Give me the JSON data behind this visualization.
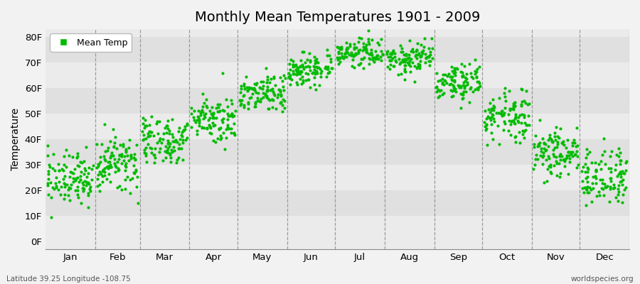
{
  "title": "Monthly Mean Temperatures 1901 - 2009",
  "ylabel": "Temperature",
  "month_labels": [
    "Jan",
    "Feb",
    "Mar",
    "Apr",
    "May",
    "Jun",
    "Jul",
    "Aug",
    "Sep",
    "Oct",
    "Nov",
    "Dec"
  ],
  "ytick_labels": [
    "0F",
    "10F",
    "20F",
    "30F",
    "40F",
    "50F",
    "60F",
    "70F",
    "80F"
  ],
  "ytick_values": [
    0,
    10,
    20,
    30,
    40,
    50,
    60,
    70,
    80
  ],
  "ylim": [
    -3,
    83
  ],
  "xlim": [
    0,
    365
  ],
  "dot_color": "#00bb00",
  "bg_color": "#f2f2f2",
  "plot_bg_light": "#ebebeb",
  "plot_bg_dark": "#e0e0e0",
  "legend_label": "Mean Temp",
  "footer_left": "Latitude 39.25 Longitude -108.75",
  "footer_right": "worldspecies.org",
  "monthly_means": [
    24.5,
    30.0,
    39.5,
    48.5,
    58.0,
    67.5,
    74.0,
    71.5,
    62.0,
    49.5,
    35.0,
    25.5
  ],
  "monthly_stds": [
    5.0,
    5.5,
    5.0,
    4.5,
    4.0,
    3.5,
    2.5,
    3.5,
    4.0,
    5.0,
    5.0,
    5.5
  ],
  "n_years": 109,
  "month_days": [
    31,
    28,
    31,
    30,
    31,
    30,
    31,
    31,
    30,
    31,
    30,
    31
  ],
  "vline_color": "#888888",
  "stripe_band": 10
}
